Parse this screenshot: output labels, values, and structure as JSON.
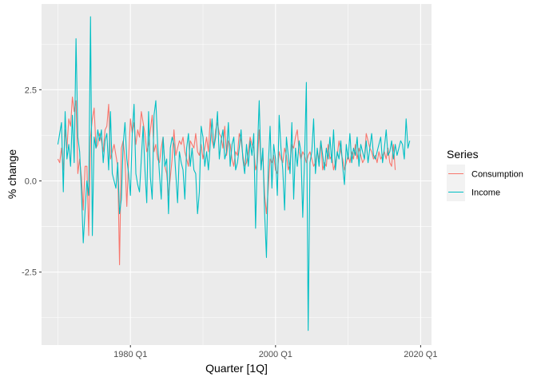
{
  "chart_data": {
    "type": "line",
    "xlabel": "Quarter [1Q]",
    "ylabel": "% change",
    "x_ticks": [
      {
        "label": "1980 Q1",
        "value": 1980.0
      },
      {
        "label": "2000 Q1",
        "value": 2000.0
      },
      {
        "label": "2020 Q1",
        "value": 2020.0
      }
    ],
    "y_ticks": [
      {
        "label": "-2.5",
        "value": -2.5
      },
      {
        "label": "0.0",
        "value": 0.0
      },
      {
        "label": "2.5",
        "value": 2.5
      }
    ],
    "xlim": [
      1967.75,
      2021.5
    ],
    "ylim": [
      -4.5,
      4.85
    ],
    "grid": true,
    "legend": {
      "title": "Series",
      "placement": "right"
    },
    "series": [
      {
        "name": "Consumption",
        "color": "#F8766D",
        "x_start": 1970.0,
        "step": 0.25,
        "values": [
          0.6,
          0.5,
          0.9,
          0.3,
          1.4,
          0.9,
          1.7,
          1.5,
          2.3,
          1.9,
          2.2,
          0.2,
          0.6,
          0.1,
          -0.8,
          0.4,
          0.4,
          -1.5,
          1.2,
          1.7,
          2.0,
          0.9,
          1.0,
          1.3,
          1.1,
          0.8,
          1.4,
          1.5,
          2.1,
          0.6,
          0.8,
          1.0,
          0.7,
          0.4,
          -2.3,
          0.9,
          1.1,
          0.6,
          -0.7,
          0.6,
          1.7,
          1.3,
          1.6,
          1.0,
          1.4,
          1.2,
          1.9,
          1.6,
          1.3,
          0.8,
          1.0,
          1.4,
          1.8,
          0.8,
          1.0,
          0.6,
          0.5,
          0.9,
          1.2,
          0.4,
          0.2,
          -0.4,
          0.1,
          0.6,
          1.4,
          0.7,
          0.9,
          1.1,
          1.0,
          1.2,
          0.8,
          0.6,
          0.4,
          1.1,
          1.0,
          0.9,
          1.3,
          0.8,
          0.7,
          1.0,
          0.6,
          0.9,
          1.2,
          0.8,
          1.7,
          1.1,
          0.9,
          1.4,
          1.6,
          1.3,
          1.2,
          0.9,
          1.5,
          0.7,
          1.1,
          1.0,
          0.6,
          0.4,
          0.8,
          0.7,
          1.3,
          1.1,
          0.7,
          0.4,
          0.5,
          0.8,
          1.2,
          1.0,
          0.9,
          0.3,
          0.5,
          1.4,
          0.4,
          0.7,
          -0.4,
          -0.9,
          -0.2,
          0.6,
          0.5,
          0.7,
          0.3,
          0.2,
          0.8,
          0.6,
          0.5,
          0.9,
          0.7,
          0.3,
          0.5,
          1.0,
          0.9,
          1.2,
          1.4,
          0.8,
          0.6,
          0.8,
          0.7,
          0.5,
          0.7,
          0.8,
          0.6,
          0.4,
          0.5,
          0.8,
          0.6,
          1.1,
          0.3,
          0.5,
          0.4,
          1.0,
          0.6,
          0.7,
          0.3,
          0.5,
          0.7,
          1.1,
          0.8,
          0.6,
          0.3,
          0.5,
          0.7,
          0.5,
          0.8,
          0.6,
          1.0,
          0.6,
          0.9,
          0.7,
          0.5,
          0.6,
          1.3,
          1.1,
          0.9,
          0.8,
          0.6,
          0.7,
          0.5,
          0.8,
          0.6,
          0.7,
          0.8,
          0.6,
          0.9,
          0.5,
          0.4,
          1.0,
          0.3
        ]
      },
      {
        "name": "Income",
        "color": "#00BFC4",
        "x_start": 1970.0,
        "step": 0.25,
        "values": [
          1.0,
          1.3,
          1.6,
          -0.3,
          1.9,
          0.6,
          1.0,
          0.4,
          1.8,
          0.5,
          3.9,
          1.2,
          0.8,
          -0.3,
          -1.7,
          -0.8,
          0.0,
          -0.4,
          4.5,
          -1.5,
          1.2,
          0.9,
          1.4,
          1.1,
          1.4,
          0.5,
          1.1,
          1.3,
          0.3,
          1.9,
          0.2,
          0.0,
          -0.2,
          0.5,
          -0.9,
          -0.5,
          1.0,
          1.6,
          0.6,
          0.2,
          -0.4,
          1.3,
          2.1,
          0.2,
          -0.1,
          -0.3,
          0.6,
          1.5,
          0.3,
          -0.6,
          1.9,
          0.1,
          -0.5,
          1.8,
          2.2,
          1.0,
          0.2,
          -0.5,
          1.2,
          0.4,
          0.6,
          -0.9,
          0.9,
          1.2,
          1.0,
          0.2,
          -0.6,
          0.8,
          0.5,
          0.3,
          -0.5,
          0.9,
          1.3,
          0.4,
          0.9,
          0.3,
          0.2,
          -0.9,
          -0.3,
          1.5,
          1.2,
          0.4,
          0.8,
          0.3,
          1.0,
          1.7,
          0.9,
          1.2,
          1.9,
          0.6,
          1.1,
          1.4,
          0.6,
          0.8,
          1.6,
          0.4,
          1.0,
          1.2,
          0.3,
          0.5,
          0.9,
          1.4,
          0.6,
          0.2,
          1.0,
          0.4,
          1.1,
          0.7,
          1.3,
          -1.3,
          0.8,
          2.2,
          0.3,
          0.9,
          -0.9,
          -2.1,
          0.4,
          1.5,
          -0.2,
          1.0,
          0.6,
          -0.4,
          1.8,
          0.9,
          0.3,
          -0.8,
          1.2,
          0.7,
          0.2,
          1.6,
          -0.5,
          0.9,
          0.4,
          1.1,
          0.8,
          -1.0,
          0.6,
          2.7,
          -4.1,
          0.5,
          0.8,
          1.7,
          0.2,
          0.9,
          0.4,
          1.1,
          0.7,
          0.3,
          0.9,
          0.6,
          1.2,
          0.5,
          1.4,
          0.3,
          0.8,
          0.6,
          1.1,
          0.4,
          -0.1,
          1.0,
          0.6,
          1.3,
          0.5,
          0.9,
          0.7,
          1.2,
          0.4,
          1.0,
          0.8,
          0.6,
          1.1,
          0.5,
          0.9,
          1.3,
          0.7,
          0.6,
          0.8,
          1.0,
          1.2,
          0.5,
          0.9,
          1.4,
          0.7,
          0.8,
          1.1,
          0.6,
          1.0,
          0.7,
          0.9,
          1.1,
          1.0,
          0.6,
          1.7,
          0.9,
          1.1
        ]
      }
    ]
  }
}
